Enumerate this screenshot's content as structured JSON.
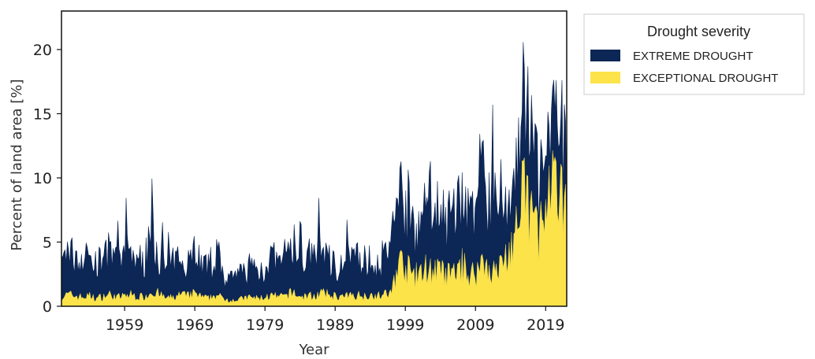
{
  "chart_data": {
    "type": "area",
    "stacked": true,
    "title": "",
    "xlabel": "Year",
    "ylabel": "Percent of land area [%]",
    "xlim": [
      1950,
      2022
    ],
    "ylim": [
      0,
      23
    ],
    "x_ticks": [
      1959,
      1969,
      1979,
      1989,
      1999,
      2009,
      2019
    ],
    "y_ticks": [
      0,
      5,
      10,
      15,
      20
    ],
    "grid": false,
    "legend": {
      "title": "Drought severity",
      "placement": "outside-top-right",
      "entries": [
        "EXTREME DROUGHT",
        "EXCEPTIONAL DROUGHT"
      ]
    },
    "x": [
      1950,
      1951,
      1952,
      1953,
      1954,
      1955,
      1956,
      1957,
      1958,
      1959,
      1960,
      1961,
      1962,
      1963,
      1964,
      1965,
      1966,
      1967,
      1968,
      1969,
      1970,
      1971,
      1972,
      1973,
      1974,
      1975,
      1976,
      1977,
      1978,
      1979,
      1980,
      1981,
      1982,
      1983,
      1984,
      1985,
      1986,
      1987,
      1988,
      1989,
      1990,
      1991,
      1992,
      1993,
      1994,
      1995,
      1996,
      1997,
      1998,
      1999,
      2000,
      2001,
      2002,
      2003,
      2004,
      2005,
      2006,
      2007,
      2008,
      2009,
      2010,
      2011,
      2012,
      2013,
      2014,
      2015,
      2016,
      2017,
      2018,
      2019,
      2020,
      2021,
      2022
    ],
    "series": [
      {
        "name": "EXCEPTIONAL DROUGHT",
        "color": "#fce34a",
        "values": [
          0.7,
          0.9,
          0.8,
          0.7,
          0.8,
          0.6,
          0.8,
          0.9,
          0.7,
          0.8,
          0.9,
          0.7,
          0.8,
          1.2,
          0.9,
          0.6,
          0.7,
          0.9,
          0.8,
          1.0,
          0.7,
          0.6,
          0.9,
          0.6,
          0.5,
          0.5,
          0.6,
          0.7,
          0.6,
          0.7,
          0.8,
          0.7,
          0.8,
          1.1,
          0.7,
          0.8,
          0.8,
          1.0,
          0.9,
          0.8,
          0.7,
          0.8,
          0.9,
          0.8,
          0.9,
          0.8,
          0.9,
          1.0,
          3.5,
          3.0,
          2.5,
          2.3,
          3.0,
          2.8,
          2.6,
          2.4,
          2.5,
          3.2,
          2.6,
          2.5,
          3.5,
          3.0,
          2.5,
          3.5,
          4.5,
          6.0,
          9.0,
          7.0,
          6.0,
          6.5,
          9.0,
          8.0,
          7.0
        ]
      },
      {
        "name": "EXTREME DROUGHT",
        "color": "#0c2655",
        "values": [
          2.5,
          3.5,
          2.8,
          3.0,
          3.2,
          2.5,
          3.0,
          3.5,
          2.6,
          3.2,
          3.5,
          2.6,
          3.0,
          4.5,
          3.0,
          2.2,
          2.6,
          3.0,
          2.6,
          3.6,
          2.5,
          2.2,
          3.5,
          2.0,
          1.6,
          1.8,
          2.2,
          2.5,
          2.0,
          2.5,
          3.0,
          2.5,
          3.0,
          4.0,
          2.6,
          3.0,
          3.0,
          3.6,
          3.0,
          2.6,
          2.5,
          3.0,
          3.0,
          2.8,
          2.8,
          2.6,
          3.0,
          3.5,
          6.5,
          5.0,
          4.5,
          4.2,
          4.8,
          5.5,
          4.5,
          4.0,
          4.8,
          5.5,
          4.5,
          4.5,
          6.5,
          6.0,
          5.0,
          4.5,
          4.0,
          6.0,
          5.0,
          5.0,
          4.5,
          5.0,
          5.5,
          5.0,
          5.0
        ]
      }
    ]
  }
}
